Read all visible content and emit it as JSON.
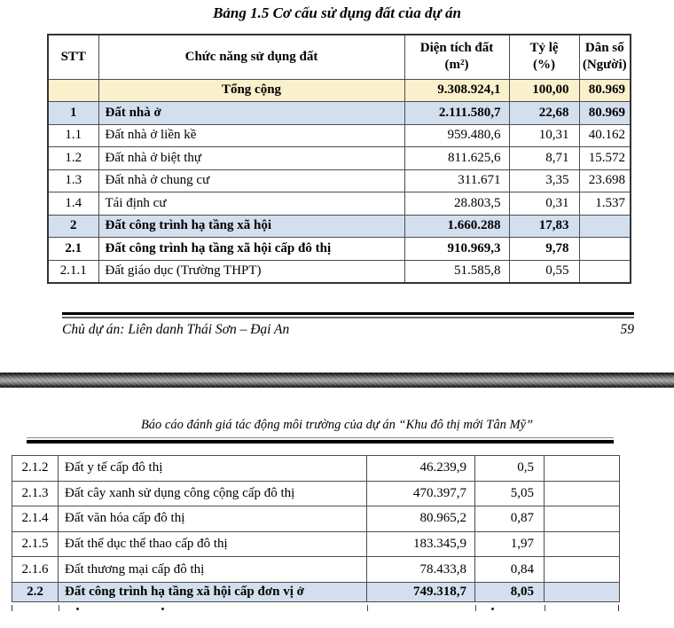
{
  "page1": {
    "title": "Bảng 1.5 Cơ cấu sử dụng đất của dự án",
    "table": {
      "col_headers": {
        "stt": "STT",
        "name": "Chức năng sử dụng đất",
        "area_line1": "Diện tích đất",
        "area_line2": "(m²)",
        "pct_line1": "Tỷ lệ",
        "pct_line2": "(%)",
        "pop_line1": "Dân số",
        "pop_line2": "(Người)"
      },
      "rows": [
        {
          "stt": "",
          "name": "Tổng cộng",
          "area": "9.308.924,1",
          "pct": "100,00",
          "pop": "80.969",
          "style": "total"
        },
        {
          "stt": "1",
          "name": "Đất nhà ở",
          "area": "2.111.580,7",
          "pct": "22,68",
          "pop": "80.969",
          "style": "section"
        },
        {
          "stt": "1.1",
          "name": "Đất nhà ở liền kề",
          "area": "959.480,6",
          "pct": "10,31",
          "pop": "40.162",
          "style": "normal"
        },
        {
          "stt": "1.2",
          "name": "Đất nhà ở biệt thự",
          "area": "811.625,6",
          "pct": "8,71",
          "pop": "15.572",
          "style": "normal"
        },
        {
          "stt": "1.3",
          "name": "Đất nhà ở chung cư",
          "area": "311.671",
          "pct": "3,35",
          "pop": "23.698",
          "style": "normal"
        },
        {
          "stt": "1.4",
          "name": "Tái định cư",
          "area": "28.803,5",
          "pct": "0,31",
          "pop": "1.537",
          "style": "normal"
        },
        {
          "stt": "2",
          "name": "Đất công trình hạ tầng xã hội",
          "area": "1.660.288",
          "pct": "17,83",
          "pop": "",
          "style": "section"
        },
        {
          "stt": "2.1",
          "name": "Đất công trình hạ tầng xã hội cấp đô thị",
          "area": "910.969,3",
          "pct": "9,78",
          "pop": "",
          "style": "subsection"
        },
        {
          "stt": "2.1.1",
          "name": "Đất giáo dục (Trường THPT)",
          "area": "51.585,8",
          "pct": "0,55",
          "pop": "",
          "style": "normal"
        }
      ]
    },
    "footer": {
      "owner": "Chủ dự án: Liên danh Thái Sơn – Đại An",
      "page_number": "59"
    }
  },
  "page2": {
    "header": "Báo cáo đánh giá tác động môi trường của dự án “Khu đô thị mới Tân Mỹ”",
    "table": {
      "rows": [
        {
          "stt": "2.1.2",
          "name": "Đất y tế cấp đô thị",
          "area": "46.239,9",
          "pct": "0,5",
          "pop": "",
          "style": "normal"
        },
        {
          "stt": "2.1.3",
          "name": "Đất cây xanh sử dụng công cộng cấp đô thị",
          "area": "470.397,7",
          "pct": "5,05",
          "pop": "",
          "style": "normal"
        },
        {
          "stt": "2.1.4",
          "name": "Đất văn hóa cấp đô thị",
          "area": "80.965,2",
          "pct": "0,87",
          "pop": "",
          "style": "normal"
        },
        {
          "stt": "2.1.5",
          "name": "Đất thể dục thể thao cấp đô thị",
          "area": "183.345,9",
          "pct": "1,97",
          "pop": "",
          "style": "normal"
        },
        {
          "stt": "2.1.6",
          "name": "Đất thương mại cấp đô thị",
          "area": "78.433,8",
          "pct": "0,84",
          "pop": "",
          "style": "normal"
        },
        {
          "stt": "2.2",
          "name": "Đất công trình hạ tầng xã hội cấp đơn vị ở",
          "area": "749.318,7",
          "pct": "8,05",
          "pop": "",
          "style": "section"
        }
      ]
    }
  },
  "colors": {
    "row_highlight_yellow": "#fbf0cc",
    "row_highlight_blue": "#d3dfee"
  }
}
